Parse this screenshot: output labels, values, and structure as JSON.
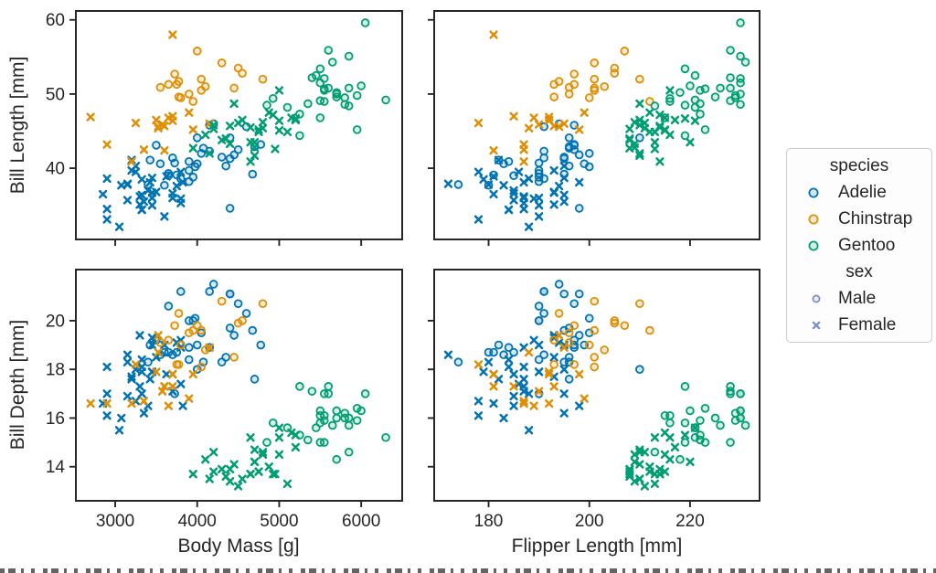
{
  "figure": {
    "ylabel_top": "Bill Length [mm]",
    "ylabel_bottom": "Bill Depth [mm]",
    "xlabel_left": "Body Mass [g]",
    "xlabel_right": "Flipper Length [mm]"
  },
  "legend": {
    "species_title": "species",
    "sex_title": "sex",
    "species_items": [
      {
        "label": "Adelie",
        "color": "#0173b2"
      },
      {
        "label": "Chinstrap",
        "color": "#de8f05"
      },
      {
        "label": "Gentoo",
        "color": "#029e73"
      }
    ],
    "sex_items": [
      {
        "label": "Male",
        "marker": "circle"
      },
      {
        "label": "Female",
        "marker": "X"
      }
    ],
    "sex_marker_color": "#7a8ec5"
  },
  "chart_data": {
    "type": "scatter",
    "grid": [
      2,
      2
    ],
    "hue": "species",
    "style": "sex",
    "palette": {
      "Adelie": "#0173b2",
      "Chinstrap": "#de8f05",
      "Gentoo": "#029e73"
    },
    "markers": {
      "Male": "circle",
      "Female": "X"
    },
    "axes": {
      "body_mass": {
        "label": "Body Mass [g]",
        "lim": [
          2520,
          6500
        ],
        "ticks": [
          3000,
          4000,
          5000,
          6000
        ]
      },
      "flipper_length": {
        "label": "Flipper Length [mm]",
        "lim": [
          169.2,
          233.8
        ],
        "ticks": [
          180,
          200,
          220
        ]
      },
      "bill_length": {
        "label": "Bill Length [mm]",
        "lim": [
          30.4,
          61.2
        ],
        "ticks": [
          40,
          50,
          60
        ]
      },
      "bill_depth": {
        "label": "Bill Depth [mm]",
        "lim": [
          12.6,
          22.1
        ],
        "ticks": [
          14,
          16,
          18,
          20
        ]
      }
    },
    "panels": [
      {
        "x": "body_mass",
        "y": "bill_length",
        "x_tick_labels": false,
        "y_tick_labels": true
      },
      {
        "x": "flipper_length",
        "y": "bill_length",
        "x_tick_labels": false,
        "y_tick_labels": false
      },
      {
        "x": "body_mass",
        "y": "bill_depth",
        "x_tick_labels": true,
        "y_tick_labels": true
      },
      {
        "x": "flipper_length",
        "y": "bill_depth",
        "x_tick_labels": true,
        "y_tick_labels": false
      }
    ],
    "species_codes": {
      "A": "Adelie",
      "C": "Chinstrap",
      "G": "Gentoo"
    },
    "sex_codes": {
      "M": "Male",
      "F": "Female"
    },
    "columns": [
      "species",
      "sex",
      "bill_length",
      "bill_depth",
      "flipper_length",
      "body_mass"
    ],
    "points": [
      [
        "A",
        "M",
        39.1,
        18.7,
        181,
        3750
      ],
      [
        "A",
        "M",
        39.2,
        19.6,
        195,
        4675
      ],
      [
        "A",
        "M",
        39.3,
        20.6,
        190,
        3650
      ],
      [
        "A",
        "M",
        38.6,
        21.2,
        191,
        3800
      ],
      [
        "A",
        "M",
        34.6,
        21.1,
        198,
        4400
      ],
      [
        "A",
        "M",
        42.5,
        20.7,
        197,
        4500
      ],
      [
        "A",
        "M",
        46.0,
        21.5,
        194,
        4200
      ],
      [
        "A",
        "M",
        37.8,
        18.3,
        174,
        3400
      ],
      [
        "A",
        "M",
        41.1,
        19.0,
        182,
        3425
      ],
      [
        "A",
        "M",
        40.3,
        18.5,
        196,
        4350
      ],
      [
        "A",
        "M",
        41.3,
        21.1,
        195,
        4400
      ],
      [
        "A",
        "M",
        40.6,
        18.6,
        183,
        3550
      ],
      [
        "A",
        "M",
        41.5,
        18.3,
        195,
        4300
      ],
      [
        "A",
        "M",
        44.1,
        19.7,
        196,
        4400
      ],
      [
        "A",
        "M",
        43.1,
        19.2,
        197,
        3500
      ],
      [
        "A",
        "M",
        42.0,
        19.5,
        200,
        4050
      ],
      [
        "A",
        "M",
        41.4,
        18.6,
        191,
        3700
      ],
      [
        "A",
        "M",
        40.9,
        18.9,
        184,
        3900
      ],
      [
        "A",
        "M",
        42.3,
        21.2,
        191,
        4150
      ],
      [
        "A",
        "M",
        45.8,
        18.9,
        197,
        4150
      ],
      [
        "A",
        "M",
        42.9,
        17.6,
        196,
        4700
      ],
      [
        "A",
        "M",
        43.2,
        19.0,
        197,
        4775
      ],
      [
        "A",
        "M",
        40.6,
        19.0,
        199,
        4000
      ],
      [
        "A",
        "M",
        44.1,
        18.0,
        210,
        4000
      ],
      [
        "A",
        "M",
        38.8,
        20.0,
        190,
        3950
      ],
      [
        "A",
        "M",
        42.7,
        18.3,
        196,
        4075
      ],
      [
        "A",
        "M",
        37.7,
        18.7,
        180,
        3600
      ],
      [
        "A",
        "M",
        40.2,
        20.1,
        200,
        3975
      ],
      [
        "A",
        "M",
        41.8,
        19.4,
        198,
        4450
      ],
      [
        "A",
        "M",
        39.0,
        18.7,
        185,
        3650
      ],
      [
        "A",
        "M",
        38.2,
        20.0,
        190,
        3900
      ],
      [
        "A",
        "M",
        40.7,
        17.0,
        190,
        3725
      ],
      [
        "A",
        "M",
        45.6,
        20.3,
        191,
        4600
      ],
      [
        "A",
        "M",
        39.7,
        18.4,
        190,
        3900
      ],
      [
        "A",
        "F",
        39.5,
        17.4,
        186,
        3800
      ],
      [
        "A",
        "F",
        40.3,
        18.0,
        195,
        3250
      ],
      [
        "A",
        "F",
        36.7,
        19.3,
        193,
        3450
      ],
      [
        "A",
        "F",
        38.9,
        17.8,
        181,
        3625
      ],
      [
        "A",
        "F",
        41.1,
        17.6,
        182,
        3200
      ],
      [
        "A",
        "F",
        36.6,
        17.8,
        185,
        3700
      ],
      [
        "A",
        "F",
        38.7,
        19.0,
        195,
        3450
      ],
      [
        "A",
        "F",
        34.4,
        18.4,
        184,
        3325
      ],
      [
        "A",
        "F",
        37.8,
        18.3,
        180,
        3150
      ],
      [
        "A",
        "F",
        35.9,
        19.2,
        189,
        3800
      ],
      [
        "A",
        "F",
        35.3,
        18.9,
        187,
        3800
      ],
      [
        "A",
        "F",
        37.9,
        18.6,
        172,
        3150
      ],
      [
        "A",
        "F",
        35.0,
        17.9,
        190,
        3450
      ],
      [
        "A",
        "F",
        34.5,
        18.1,
        187,
        2900
      ],
      [
        "A",
        "F",
        36.0,
        17.1,
        187,
        3700
      ],
      [
        "A",
        "F",
        32.1,
        15.5,
        188,
        3050
      ],
      [
        "A",
        "F",
        33.5,
        19.0,
        190,
        3600
      ],
      [
        "A",
        "F",
        36.2,
        17.3,
        187,
        3300
      ],
      [
        "A",
        "F",
        37.7,
        16.0,
        183,
        3075
      ],
      [
        "A",
        "F",
        36.5,
        16.6,
        181,
        2850
      ],
      [
        "A",
        "F",
        38.1,
        16.5,
        198,
        3825
      ],
      [
        "A",
        "F",
        39.5,
        16.7,
        178,
        3250
      ],
      [
        "A",
        "F",
        35.7,
        16.9,
        185,
        3150
      ],
      [
        "A",
        "F",
        36.4,
        17.0,
        195,
        3325
      ],
      [
        "A",
        "F",
        35.1,
        19.4,
        193,
        3300
      ],
      [
        "A",
        "F",
        38.5,
        17.9,
        179,
        3325
      ],
      [
        "A",
        "F",
        36.8,
        18.5,
        193,
        3500
      ],
      [
        "A",
        "F",
        37.6,
        19.1,
        194,
        3750
      ],
      [
        "A",
        "F",
        38.6,
        17.0,
        188,
        2900
      ],
      [
        "A",
        "F",
        35.5,
        16.2,
        195,
        3350
      ],
      [
        "A",
        "F",
        37.0,
        16.5,
        185,
        3400
      ],
      [
        "A",
        "F",
        36.0,
        17.9,
        190,
        3450
      ],
      [
        "A",
        "F",
        33.1,
        16.1,
        178,
        2900
      ],
      [
        "A",
        "F",
        38.1,
        17.6,
        187,
        3425
      ],
      [
        "A",
        "F",
        39.7,
        17.7,
        193,
        3200
      ],
      [
        "A",
        "F",
        34.4,
        18.1,
        184,
        3325
      ],
      [
        "C",
        "M",
        50.0,
        19.5,
        196,
        3900
      ],
      [
        "C",
        "M",
        51.3,
        19.2,
        193,
        3650
      ],
      [
        "C",
        "M",
        52.7,
        19.8,
        197,
        3725
      ],
      [
        "C",
        "M",
        51.3,
        18.2,
        197,
        3750
      ],
      [
        "C",
        "M",
        51.7,
        20.3,
        194,
        3775
      ],
      [
        "C",
        "M",
        52.0,
        18.1,
        201,
        4050
      ],
      [
        "C",
        "M",
        50.5,
        19.6,
        201,
        4050
      ],
      [
        "C",
        "M",
        49.5,
        19.0,
        200,
        3800
      ],
      [
        "C",
        "M",
        52.8,
        20.0,
        205,
        4550
      ],
      [
        "C",
        "M",
        54.2,
        20.8,
        201,
        4300
      ],
      [
        "C",
        "M",
        51.0,
        18.8,
        203,
        4100
      ],
      [
        "C",
        "M",
        55.8,
        19.8,
        207,
        4000
      ],
      [
        "C",
        "M",
        53.5,
        19.9,
        205,
        4500
      ],
      [
        "C",
        "M",
        50.8,
        18.5,
        201,
        4450
      ],
      [
        "C",
        "M",
        49.0,
        19.6,
        212,
        3950
      ],
      [
        "C",
        "M",
        49.6,
        18.2,
        193,
        3775
      ],
      [
        "C",
        "M",
        50.9,
        19.1,
        196,
        3550
      ],
      [
        "C",
        "M",
        52.0,
        20.7,
        210,
        4800
      ],
      [
        "C",
        "F",
        46.5,
        17.9,
        192,
        3500
      ],
      [
        "C",
        "F",
        45.4,
        18.7,
        188,
        3525
      ],
      [
        "C",
        "F",
        45.2,
        17.8,
        198,
        3950
      ],
      [
        "C",
        "F",
        46.1,
        18.2,
        178,
        3250
      ],
      [
        "C",
        "F",
        46.0,
        18.9,
        195,
        4150
      ],
      [
        "C",
        "F",
        47.0,
        17.3,
        185,
        3700
      ],
      [
        "C",
        "F",
        46.4,
        17.8,
        192,
        3700
      ],
      [
        "C",
        "F",
        42.4,
        17.3,
        181,
        3600
      ],
      [
        "C",
        "F",
        42.5,
        16.7,
        187,
        3350
      ],
      [
        "C",
        "F",
        43.2,
        16.6,
        187,
        2900
      ],
      [
        "C",
        "F",
        45.7,
        17.3,
        193,
        3600
      ],
      [
        "C",
        "F",
        46.8,
        16.5,
        189,
        3650
      ],
      [
        "C",
        "F",
        40.9,
        16.6,
        187,
        3200
      ],
      [
        "C",
        "F",
        58.0,
        17.8,
        181,
        3700
      ],
      [
        "C",
        "F",
        46.9,
        16.6,
        192,
        2700
      ],
      [
        "C",
        "F",
        45.6,
        19.4,
        194,
        3525
      ],
      [
        "C",
        "F",
        47.5,
        16.8,
        199,
        3900
      ],
      [
        "C",
        "F",
        45.9,
        17.1,
        190,
        3575
      ],
      [
        "G",
        "M",
        50.0,
        16.3,
        230,
        5700
      ],
      [
        "G",
        "M",
        50.8,
        15.7,
        226,
        5850
      ],
      [
        "G",
        "M",
        59.6,
        17.0,
        230,
        6050
      ],
      [
        "G",
        "M",
        49.2,
        15.2,
        221,
        6300
      ],
      [
        "G",
        "M",
        48.7,
        15.1,
        222,
        5350
      ],
      [
        "G",
        "M",
        50.2,
        14.3,
        218,
        5700
      ],
      [
        "G",
        "M",
        49.0,
        16.1,
        216,
        5550
      ],
      [
        "G",
        "M",
        51.1,
        16.3,
        220,
        6000
      ],
      [
        "G",
        "M",
        48.4,
        14.6,
        213,
        5850
      ],
      [
        "G",
        "M",
        49.8,
        15.9,
        229,
        5950
      ],
      [
        "G",
        "M",
        54.3,
        15.7,
        231,
        5650
      ],
      [
        "G",
        "M",
        50.7,
        15.0,
        223,
        5550
      ],
      [
        "G",
        "M",
        53.4,
        15.8,
        219,
        5500
      ],
      [
        "G",
        "M",
        48.2,
        15.6,
        221,
        5100
      ],
      [
        "G",
        "M",
        55.1,
        16.0,
        230,
        5850
      ],
      [
        "G",
        "M",
        51.5,
        16.3,
        230,
        5500
      ],
      [
        "G",
        "M",
        55.9,
        17.0,
        228,
        5600
      ],
      [
        "G",
        "M",
        49.1,
        15.0,
        228,
        5500
      ],
      [
        "G",
        "M",
        46.8,
        16.1,
        215,
        5500
      ],
      [
        "G",
        "M",
        45.2,
        16.4,
        223,
        5950
      ],
      [
        "G",
        "M",
        44.4,
        17.3,
        219,
        5250
      ],
      [
        "G",
        "M",
        52.1,
        17.0,
        230,
        5550
      ],
      [
        "G",
        "M",
        52.2,
        17.1,
        228,
        5400
      ],
      [
        "G",
        "M",
        49.5,
        16.2,
        229,
        5800
      ],
      [
        "G",
        "M",
        50.5,
        15.9,
        222,
        5550
      ],
      [
        "G",
        "M",
        47.3,
        15.3,
        222,
        5250
      ],
      [
        "G",
        "M",
        48.6,
        16.0,
        230,
        5800
      ],
      [
        "G",
        "M",
        52.5,
        15.6,
        221,
        5450
      ],
      [
        "G",
        "M",
        49.6,
        16.0,
        225,
        5700
      ],
      [
        "G",
        "M",
        50.8,
        17.3,
        228,
        5600
      ],
      [
        "G",
        "M",
        49.4,
        15.8,
        216,
        4925
      ],
      [
        "G",
        "M",
        48.5,
        15.0,
        219,
        4850
      ],
      [
        "G",
        "F",
        46.1,
        13.2,
        211,
        4500
      ],
      [
        "G",
        "F",
        45.4,
        14.6,
        211,
        4800
      ],
      [
        "G",
        "F",
        43.3,
        13.4,
        209,
        4400
      ],
      [
        "G",
        "F",
        46.7,
        15.3,
        219,
        5200
      ],
      [
        "G",
        "F",
        46.8,
        15.4,
        215,
        5150
      ],
      [
        "G",
        "F",
        40.9,
        13.7,
        214,
        4650
      ],
      [
        "G",
        "F",
        45.5,
        13.7,
        214,
        4650
      ],
      [
        "G",
        "F",
        45.8,
        14.6,
        210,
        4200
      ],
      [
        "G",
        "F",
        42.0,
        13.5,
        210,
        4150
      ],
      [
        "G",
        "F",
        44.9,
        13.3,
        213,
        5100
      ],
      [
        "G",
        "F",
        43.5,
        14.2,
        220,
        4700
      ],
      [
        "G",
        "F",
        46.2,
        14.5,
        209,
        4800
      ],
      [
        "G",
        "F",
        43.5,
        15.2,
        213,
        4650
      ],
      [
        "G",
        "F",
        50.5,
        15.2,
        216,
        5000
      ],
      [
        "G",
        "F",
        44.9,
        13.8,
        212,
        4750
      ],
      [
        "G",
        "F",
        45.1,
        14.5,
        215,
        5000
      ],
      [
        "G",
        "F",
        45.2,
        13.8,
        215,
        4750
      ],
      [
        "G",
        "F",
        46.5,
        13.5,
        210,
        4550
      ],
      [
        "G",
        "F",
        42.6,
        13.7,
        213,
        4950
      ],
      [
        "G",
        "F",
        46.4,
        15.6,
        221,
        5000
      ],
      [
        "G",
        "F",
        41.7,
        14.7,
        210,
        4700
      ],
      [
        "G",
        "F",
        45.3,
        13.8,
        208,
        4200
      ],
      [
        "G",
        "F",
        42.7,
        13.7,
        208,
        3950
      ],
      [
        "G",
        "F",
        45.7,
        13.9,
        214,
        4400
      ],
      [
        "G",
        "F",
        43.8,
        13.9,
        208,
        4300
      ],
      [
        "G",
        "F",
        47.5,
        14.0,
        212,
        4875
      ],
      [
        "G",
        "F",
        44.0,
        13.6,
        208,
        4350
      ],
      [
        "G",
        "F",
        48.7,
        14.1,
        210,
        4450
      ],
      [
        "G",
        "F",
        42.8,
        14.2,
        209,
        4700
      ],
      [
        "G",
        "F",
        44.5,
        14.3,
        216,
        4100
      ],
      [
        "G",
        "F",
        47.2,
        13.7,
        214,
        4925
      ],
      [
        "G",
        "F",
        46.5,
        14.8,
        217,
        5200
      ]
    ]
  }
}
